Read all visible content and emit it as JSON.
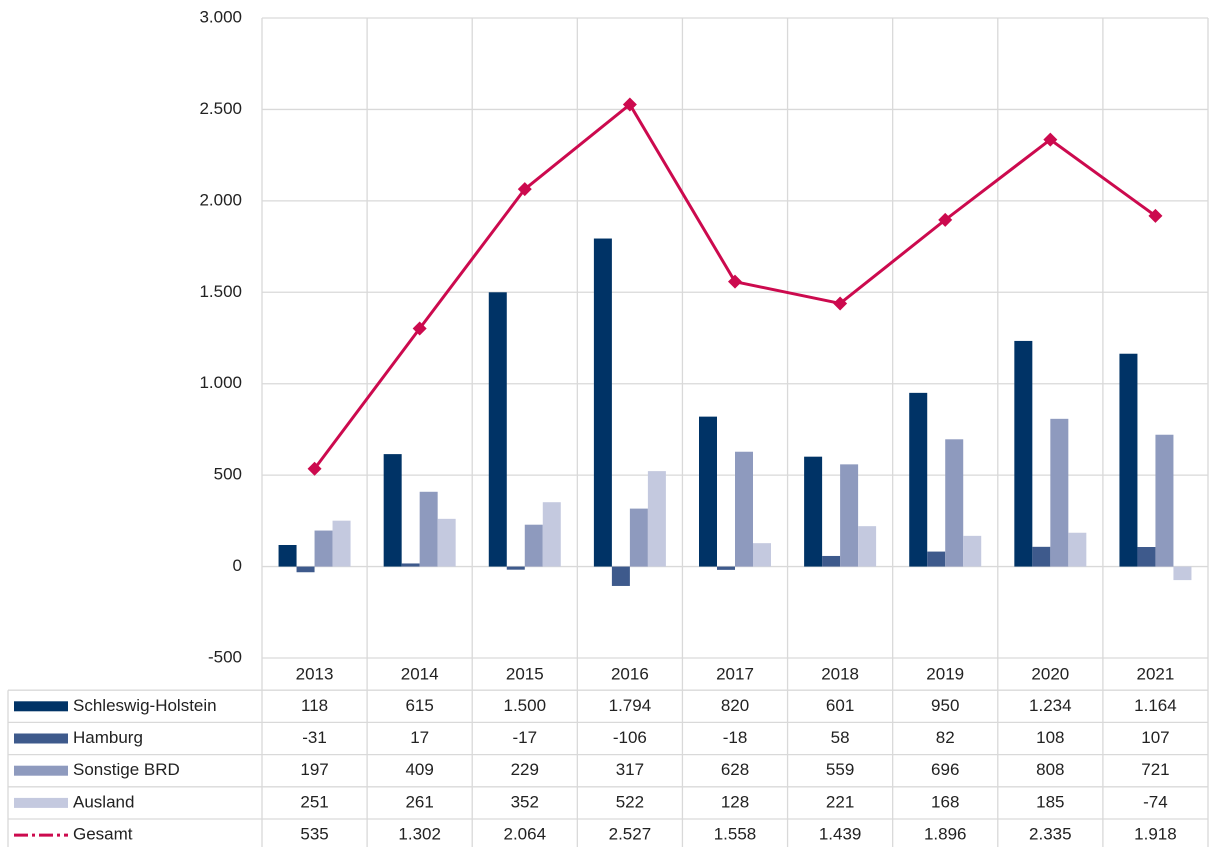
{
  "chart_data": {
    "type": "bar",
    "categories": [
      "2013",
      "2014",
      "2015",
      "2016",
      "2017",
      "2018",
      "2019",
      "2020",
      "2021"
    ],
    "series": [
      {
        "name": "Schleswig-Holstein",
        "color": "#003366",
        "values": [
          118,
          615,
          1500,
          1794,
          820,
          601,
          950,
          1234,
          1164
        ],
        "value_labels": [
          "118",
          "615",
          "1.500",
          "1.794",
          "820",
          "601",
          "950",
          "1.234",
          "1.164"
        ]
      },
      {
        "name": "Hamburg",
        "color": "#3e5a8c",
        "values": [
          -31,
          17,
          -17,
          -106,
          -18,
          58,
          82,
          108,
          107
        ],
        "value_labels": [
          "-31",
          "17",
          "-17",
          "-106",
          "-18",
          "58",
          "82",
          "108",
          "107"
        ]
      },
      {
        "name": "Sonstige BRD",
        "color": "#8e9abe",
        "values": [
          197,
          409,
          229,
          317,
          628,
          559,
          696,
          808,
          721
        ],
        "value_labels": [
          "197",
          "409",
          "229",
          "317",
          "628",
          "559",
          "696",
          "808",
          "721"
        ]
      },
      {
        "name": "Ausland",
        "color": "#c4c9df",
        "values": [
          251,
          261,
          352,
          522,
          128,
          221,
          168,
          185,
          -74
        ],
        "value_labels": [
          "251",
          "261",
          "352",
          "522",
          "128",
          "221",
          "168",
          "185",
          "-74"
        ]
      },
      {
        "name": "Gesamt",
        "type": "line",
        "color": "#cc0a4e",
        "values": [
          535,
          1302,
          2064,
          2527,
          1558,
          1439,
          1896,
          2335,
          1918
        ],
        "value_labels": [
          "535",
          "1.302",
          "2.064",
          "2.527",
          "1.558",
          "1.439",
          "1.896",
          "2.335",
          "1.918"
        ]
      }
    ],
    "ylim": [
      -500,
      3000
    ],
    "yticks": [
      -500,
      0,
      500,
      {
        "value": 1000,
        "label": "1.000"
      },
      {
        "value": 1500,
        "label": "1.500"
      },
      {
        "value": 2000,
        "label": "2.000"
      },
      {
        "value": 2500,
        "label": "2.500"
      },
      {
        "value": 3000,
        "label": "3.000"
      }
    ],
    "grid": true
  }
}
